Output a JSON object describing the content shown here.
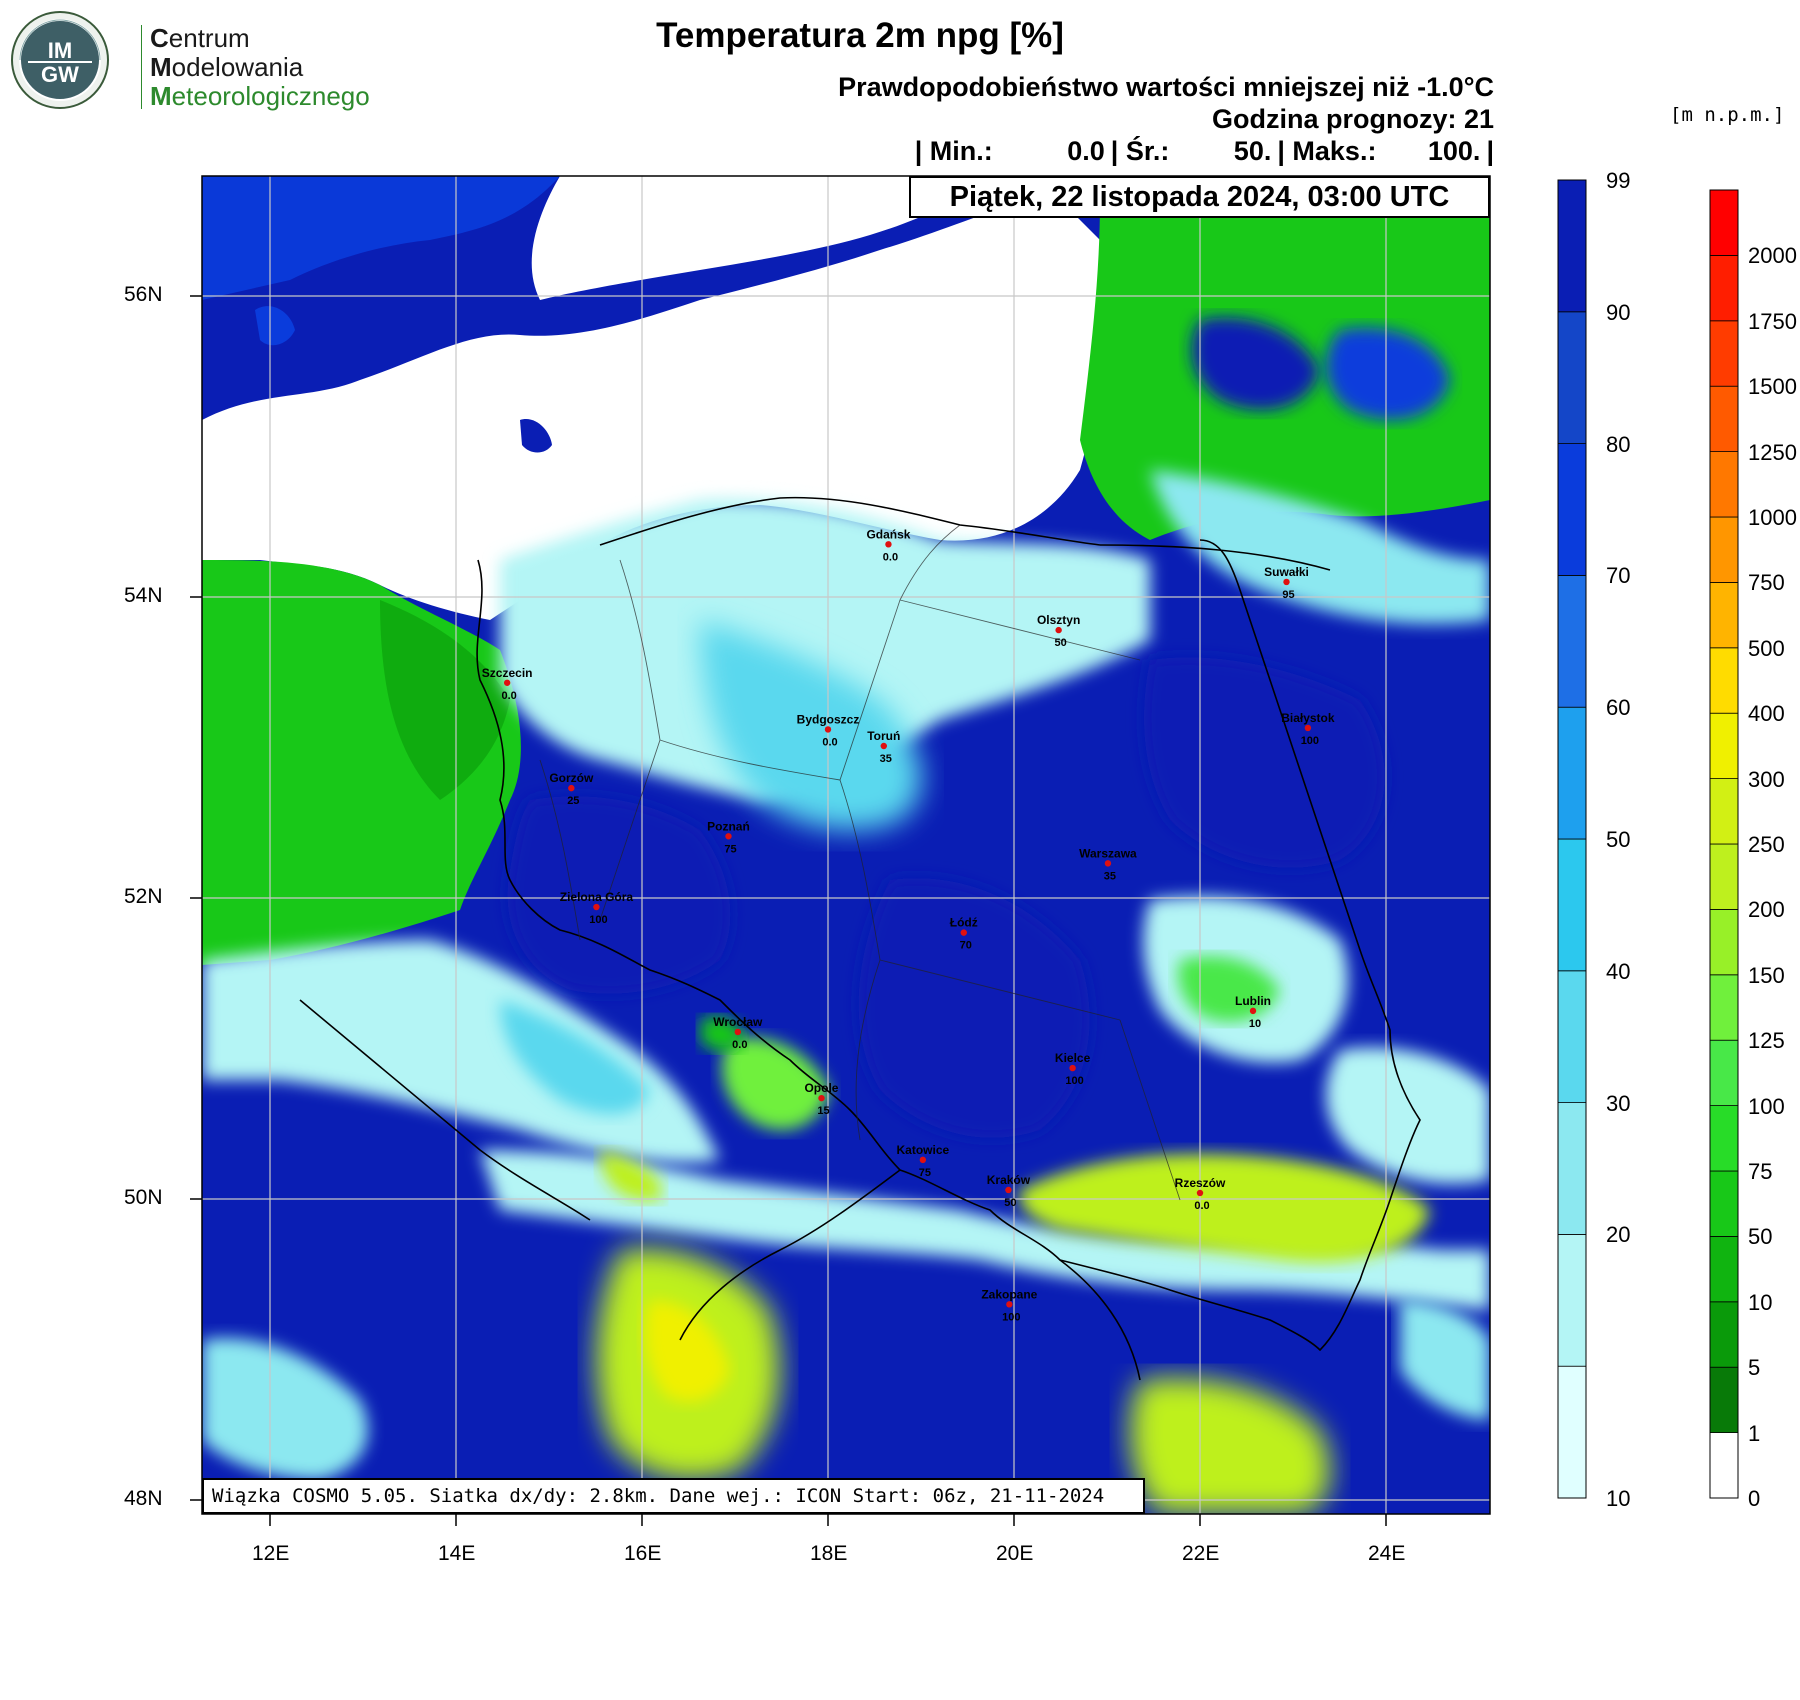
{
  "logo": {
    "line1_initial": "C",
    "line1_rest": "entrum",
    "line2_initial": "M",
    "line2_rest": "odelowania",
    "line3_initial": "M",
    "line3_rest": "eteorologicznego",
    "emblem_top": "IM",
    "emblem_bottom": "GW"
  },
  "title": "Temperatura 2m npg [%]",
  "subtitle": "Prawdopodobieństwo wartości mniejszej niż -1.0°C",
  "forecast_hour": "Godzina prognozy: 21",
  "stats": {
    "sep1": "| Min.:",
    "min": "0.0",
    "sep2": "| Śr.:",
    "mean": "50.",
    "sep3": "| Maks.:",
    "max": "100.",
    "end": "|"
  },
  "date": "Piątek, 22 listopada 2024, 03:00 UTC",
  "info": "Wiązka COSMO 5.05. Siatka dx/dy: 2.8km. Dane wej.: ICON Start: 06z, 21-11-2024",
  "unit_label": "[m n.p.m.]",
  "axes": {
    "lat_labels": [
      "56N",
      "54N",
      "52N",
      "50N",
      "48N"
    ],
    "lat_values": [
      56,
      54,
      52,
      50,
      48
    ],
    "lon_labels": [
      "12E",
      "14E",
      "16E",
      "18E",
      "20E",
      "22E",
      "24E"
    ],
    "lon_values": [
      12,
      14,
      16,
      18,
      20,
      22,
      24
    ]
  },
  "prob_scale": {
    "labels": [
      "10",
      "20",
      "30",
      "40",
      "50",
      "60",
      "70",
      "80",
      "90",
      "99"
    ],
    "colors": [
      "#e0ffff",
      "#b4f5f5",
      "#8ce8f0",
      "#5ad8ee",
      "#2cc8ee",
      "#1ea0ee",
      "#1e6fe6",
      "#0a3cdc",
      "#1446c8",
      "#0a1eb4"
    ]
  },
  "elev_scale": {
    "labels": [
      "0",
      "1",
      "5",
      "10",
      "50",
      "75",
      "100",
      "125",
      "150",
      "200",
      "250",
      "300",
      "400",
      "500",
      "750",
      "1000",
      "1250",
      "1500",
      "1750",
      "2000"
    ],
    "colors": [
      "#ffffff",
      "#087a08",
      "#0a9a0a",
      "#10b410",
      "#18c818",
      "#28dc28",
      "#48e848",
      "#70f03c",
      "#98f028",
      "#bef01e",
      "#d2f014",
      "#f0f000",
      "#ffdc00",
      "#ffb400",
      "#ff9600",
      "#ff7800",
      "#ff5a00",
      "#ff3c00",
      "#ff1e00",
      "#ff0000"
    ]
  },
  "cities": [
    {
      "name": "Gdańsk",
      "value": "0.0",
      "lat": 54.35,
      "lon": 18.65
    },
    {
      "name": "Suwałki",
      "value": "95",
      "lat": 54.1,
      "lon": 22.93
    },
    {
      "name": "Olsztyn",
      "value": "50",
      "lat": 53.78,
      "lon": 20.48
    },
    {
      "name": "Szczecin",
      "value": "0.0",
      "lat": 53.43,
      "lon": 14.55
    },
    {
      "name": "Bydgoszcz",
      "value": "0.0",
      "lat": 53.12,
      "lon": 18.0
    },
    {
      "name": "Toruń",
      "value": "35",
      "lat": 53.01,
      "lon": 18.6
    },
    {
      "name": "Białystok",
      "value": "100",
      "lat": 53.13,
      "lon": 23.16
    },
    {
      "name": "Gorzów",
      "value": "25",
      "lat": 52.73,
      "lon": 15.24
    },
    {
      "name": "Poznań",
      "value": "75",
      "lat": 52.41,
      "lon": 16.93
    },
    {
      "name": "Warszawa",
      "value": "35",
      "lat": 52.23,
      "lon": 21.01
    },
    {
      "name": "Zielona Góra",
      "value": "100",
      "lat": 51.94,
      "lon": 15.51
    },
    {
      "name": "Łódź",
      "value": "70",
      "lat": 51.77,
      "lon": 19.46
    },
    {
      "name": "Lublin",
      "value": "10",
      "lat": 51.25,
      "lon": 22.57
    },
    {
      "name": "Wrocław",
      "value": "0.0",
      "lat": 51.11,
      "lon": 17.03
    },
    {
      "name": "Kielce",
      "value": "100",
      "lat": 50.87,
      "lon": 20.63
    },
    {
      "name": "Opole",
      "value": "15",
      "lat": 50.67,
      "lon": 17.93
    },
    {
      "name": "Katowice",
      "value": "75",
      "lat": 50.26,
      "lon": 19.02
    },
    {
      "name": "Kraków",
      "value": "50",
      "lat": 50.06,
      "lon": 19.94
    },
    {
      "name": "Rzeszów",
      "value": "0.0",
      "lat": 50.04,
      "lon": 22.0
    },
    {
      "name": "Zakopane",
      "value": "100",
      "lat": 49.3,
      "lon": 19.95
    }
  ]
}
